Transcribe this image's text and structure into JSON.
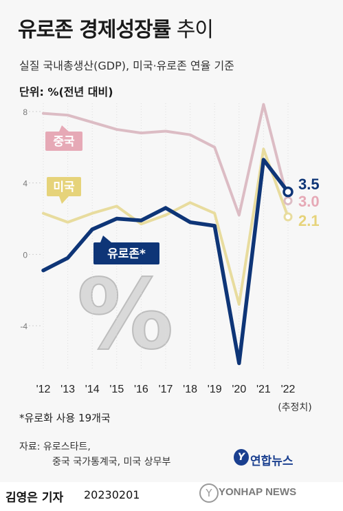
{
  "header": {
    "title": "유로존 경제성장률",
    "title_light": " 추이",
    "subtitle": "실질 국내총생산(GDP), 미국·유로존 연율 기준",
    "unit": "단위: %(전년 대비)"
  },
  "footnote": "*유로화 사용 19개국",
  "source": {
    "line1": "자료: 유로스타트,",
    "line2": "중국 국가통계국, 미국 상무부"
  },
  "credit": {
    "reporter": "김영은 기자",
    "date": "20230201",
    "logo_text": "연합뉴스",
    "logo_mark": "Y",
    "watermark": "YONHAP NEWS",
    "watermark_mark": "Y"
  },
  "decoration": {
    "percent_glyph": "%"
  },
  "chart_data": {
    "type": "line",
    "x": [
      "'12",
      "'13",
      "'14",
      "'15",
      "'16",
      "'17",
      "'18",
      "'19",
      "'20",
      "'21",
      "'22"
    ],
    "x_note": "(추정치)",
    "yticks": [
      8,
      4,
      0,
      -4
    ],
    "ylim": [
      -6.8,
      8.5
    ],
    "grid": false,
    "series": [
      {
        "name": "중국",
        "color": "#dcbcc4",
        "values": [
          7.9,
          7.8,
          7.4,
          7.0,
          6.8,
          6.9,
          6.7,
          6.0,
          2.2,
          8.4,
          3.0
        ],
        "end_label": "3.0"
      },
      {
        "name": "미국",
        "color": "#e8dc9e",
        "values": [
          2.3,
          1.8,
          2.3,
          2.7,
          1.7,
          2.2,
          2.9,
          2.3,
          -2.8,
          5.9,
          2.1
        ],
        "end_label": "2.1"
      },
      {
        "name": "유로존*",
        "color": "#0e3577",
        "values": [
          -0.9,
          -0.2,
          1.4,
          2.0,
          1.9,
          2.6,
          1.8,
          1.6,
          -6.1,
          5.3,
          3.5
        ],
        "end_label": "3.5"
      }
    ],
    "label_colors": {
      "중국": "#e6a9b6",
      "미국": "#e6d37a",
      "유로존*": "#0e3577"
    }
  }
}
